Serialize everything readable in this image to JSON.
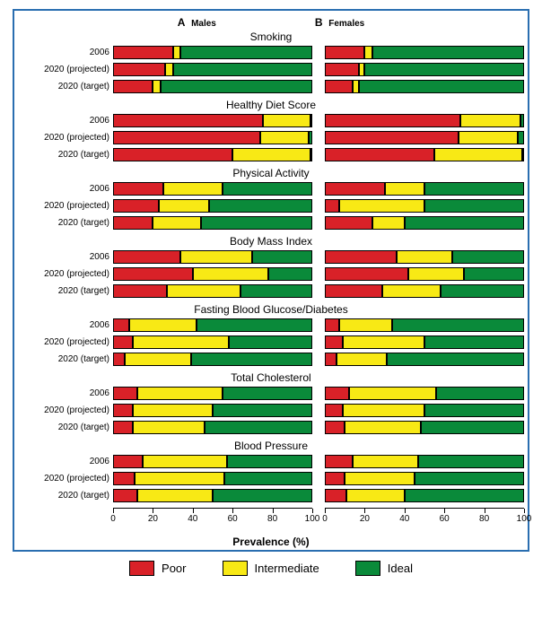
{
  "panels": {
    "A": "Males",
    "B": "Females"
  },
  "xlabel": "Prevalence (%)",
  "xlim": [
    0,
    100
  ],
  "tick_step": 20,
  "colors": {
    "poor": "#d92128",
    "intermediate": "#f8e915",
    "ideal": "#0a8a3a",
    "border": "#2a6eb0",
    "background": "#ffffff"
  },
  "legend": [
    "Poor",
    "Intermediate",
    "Ideal"
  ],
  "ylabels": [
    "2006",
    "2020 (projected)",
    "2020 (target)"
  ],
  "metrics": [
    {
      "title": "Smoking",
      "males": [
        [
          30,
          4,
          66
        ],
        [
          26,
          4,
          70
        ],
        [
          20,
          4,
          76
        ]
      ],
      "females": [
        [
          20,
          4,
          76
        ],
        [
          17,
          3,
          80
        ],
        [
          14,
          3,
          83
        ]
      ]
    },
    {
      "title": "Healthy Diet Score",
      "males": [
        [
          75,
          24,
          1
        ],
        [
          74,
          24,
          2
        ],
        [
          60,
          39,
          1
        ]
      ],
      "females": [
        [
          68,
          30,
          2
        ],
        [
          67,
          30,
          3
        ],
        [
          55,
          44,
          1
        ]
      ]
    },
    {
      "title": "Physical Activity",
      "males": [
        [
          25,
          30,
          45
        ],
        [
          23,
          25,
          52
        ],
        [
          20,
          24,
          56
        ]
      ],
      "females": [
        [
          30,
          20,
          50
        ],
        [
          7,
          43,
          50
        ],
        [
          24,
          16,
          60
        ]
      ]
    },
    {
      "title": "Body Mass Index",
      "males": [
        [
          34,
          36,
          30
        ],
        [
          40,
          38,
          22
        ],
        [
          27,
          37,
          36
        ]
      ],
      "females": [
        [
          36,
          28,
          36
        ],
        [
          42,
          28,
          30
        ],
        [
          29,
          29,
          42
        ]
      ]
    },
    {
      "title": "Fasting Blood Glucose/Diabetes",
      "males": [
        [
          8,
          34,
          58
        ],
        [
          10,
          48,
          42
        ],
        [
          6,
          33,
          61
        ]
      ],
      "females": [
        [
          7,
          27,
          66
        ],
        [
          9,
          41,
          50
        ],
        [
          6,
          25,
          69
        ]
      ]
    },
    {
      "title": "Total Cholesterol",
      "males": [
        [
          12,
          43,
          45
        ],
        [
          10,
          40,
          50
        ],
        [
          10,
          36,
          54
        ]
      ],
      "females": [
        [
          12,
          44,
          44
        ],
        [
          9,
          41,
          50
        ],
        [
          10,
          38,
          52
        ]
      ]
    },
    {
      "title": "Blood Pressure",
      "males": [
        [
          15,
          42,
          43
        ],
        [
          11,
          45,
          44
        ],
        [
          12,
          38,
          50
        ]
      ],
      "females": [
        [
          14,
          33,
          53
        ],
        [
          10,
          35,
          55
        ],
        [
          11,
          29,
          60
        ]
      ]
    }
  ]
}
